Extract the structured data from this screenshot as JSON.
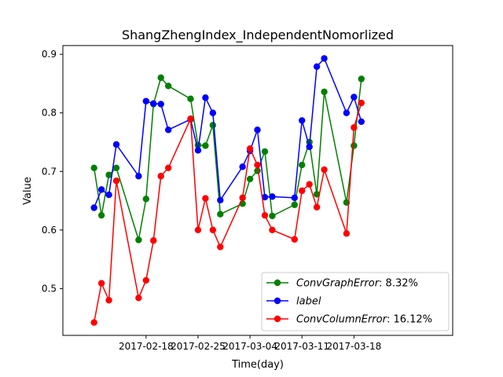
{
  "chart_data": {
    "type": "line",
    "title": "ShangZhengIndex_IndependentNomorlized",
    "xlabel": "Time(day)",
    "ylabel": "Value",
    "xlim": [
      -4.2,
      48.3
    ],
    "ylim": [
      0.42,
      0.915
    ],
    "x_ticks": [
      {
        "x": 7,
        "label": "2017-02-18"
      },
      {
        "x": 14,
        "label": "2017-02-25"
      },
      {
        "x": 21,
        "label": "2017-03-04"
      },
      {
        "x": 28,
        "label": "2017-03-11"
      },
      {
        "x": 35,
        "label": "2017-03-18"
      }
    ],
    "y_ticks": [
      {
        "y": 0.5,
        "label": "0.5"
      },
      {
        "y": 0.6,
        "label": "0.6"
      },
      {
        "y": 0.7,
        "label": "0.7"
      },
      {
        "y": 0.8,
        "label": "0.8"
      },
      {
        "y": 0.9,
        "label": "0.9"
      }
    ],
    "legend_position": "lower-right",
    "series": [
      {
        "name": "ConvGraphError",
        "legend_label": "ConvGraphError",
        "legend_suffix": ": 8.32%",
        "color": "#008000",
        "x": [
          0,
          1,
          2,
          3,
          6,
          7,
          8,
          9,
          10,
          13,
          14,
          15,
          16,
          17,
          20,
          21,
          22,
          23,
          24,
          27,
          28,
          29,
          30,
          31,
          34,
          35,
          36
        ],
        "y": [
          0.706,
          0.625,
          0.694,
          0.706,
          0.583,
          0.653,
          0.815,
          0.86,
          0.846,
          0.824,
          0.745,
          0.744,
          0.779,
          0.627,
          0.645,
          0.687,
          0.701,
          0.734,
          0.624,
          0.643,
          0.711,
          0.75,
          0.661,
          0.836,
          0.647,
          0.744,
          0.858
        ]
      },
      {
        "name": "label",
        "legend_label": "label",
        "legend_suffix": "",
        "color": "#0000ff",
        "x": [
          0,
          1,
          2,
          3,
          6,
          7,
          8,
          9,
          10,
          13,
          14,
          15,
          16,
          17,
          20,
          21,
          22,
          23,
          24,
          27,
          28,
          29,
          30,
          31,
          34,
          35,
          36
        ],
        "y": [
          0.638,
          0.669,
          0.66,
          0.746,
          0.692,
          0.82,
          0.816,
          0.815,
          0.771,
          0.789,
          0.736,
          0.826,
          0.8,
          0.651,
          0.708,
          0.735,
          0.771,
          0.656,
          0.657,
          0.655,
          0.787,
          0.742,
          0.879,
          0.893,
          0.8,
          0.827,
          0.785
        ]
      },
      {
        "name": "ConvColumnError",
        "legend_label": "ConvColumnError",
        "legend_suffix": ": 16.12%",
        "color": "#ff0000",
        "x": [
          0,
          1,
          2,
          3,
          6,
          7,
          8,
          9,
          10,
          13,
          14,
          15,
          16,
          17,
          20,
          21,
          22,
          23,
          24,
          27,
          28,
          29,
          30,
          31,
          34,
          35,
          36
        ],
        "y": [
          0.442,
          0.509,
          0.48,
          0.684,
          0.484,
          0.514,
          0.582,
          0.692,
          0.706,
          0.79,
          0.6,
          0.654,
          0.6,
          0.571,
          0.655,
          0.739,
          0.711,
          0.625,
          0.6,
          0.584,
          0.667,
          0.678,
          0.639,
          0.703,
          0.594,
          0.775,
          0.817
        ]
      }
    ]
  }
}
